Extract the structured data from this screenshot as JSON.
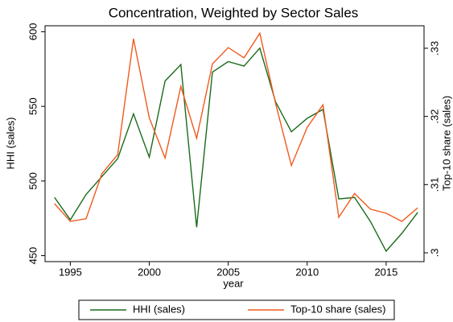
{
  "chart_data": {
    "type": "line",
    "title": "Concentration, Weighted by Sector Sales",
    "x_label": "year",
    "y_label": "HHI (sales)",
    "y2_label": "Top-10 share (sales)",
    "x": [
      1994,
      1995,
      1996,
      1997,
      1998,
      1999,
      2000,
      2001,
      2002,
      2003,
      2004,
      2005,
      2006,
      2007,
      2008,
      2009,
      2010,
      2011,
      2012,
      2013,
      2014,
      2015,
      2016,
      2017
    ],
    "xlim": [
      1993.4,
      2017.4
    ],
    "xticks": [
      1995,
      2000,
      2005,
      2010,
      2015
    ],
    "ylim": [
      446,
      604
    ],
    "yticks": [
      450,
      500,
      550,
      600
    ],
    "y2lim": [
      0.2987,
      0.3333
    ],
    "y2ticks": [
      {
        "value": 0.3,
        "label": ".3"
      },
      {
        "value": 0.31,
        "label": ".31"
      },
      {
        "value": 0.32,
        "label": ".32"
      },
      {
        "value": 0.33,
        "label": ".33"
      }
    ],
    "legend": "bottom",
    "series": [
      {
        "name": "HHI (sales)",
        "color": "#1a6b1a",
        "values": [
          489,
          474,
          491,
          503,
          515,
          545,
          516,
          567,
          578,
          469,
          573,
          580,
          577,
          589,
          553,
          533,
          542,
          548,
          488,
          489,
          473,
          453,
          465,
          479
        ]
      },
      {
        "name": "Top-10 share (sales)",
        "color": "#f05a1e",
        "axis": "y2",
        "values": [
          0.3072,
          0.3046,
          0.305,
          0.3116,
          0.3144,
          0.3314,
          0.3198,
          0.3139,
          0.3244,
          0.3168,
          0.3277,
          0.3301,
          0.3286,
          0.3322,
          0.3219,
          0.3128,
          0.3184,
          0.3217,
          0.3052,
          0.3087,
          0.3064,
          0.3058,
          0.3046,
          0.3066
        ]
      }
    ]
  }
}
